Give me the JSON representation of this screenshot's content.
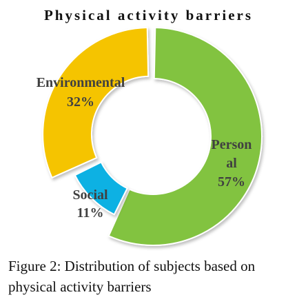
{
  "chart_data": {
    "type": "pie",
    "title": "Physical activity barriers",
    "categories": [
      "Personal",
      "Social",
      "Environmental"
    ],
    "values": [
      57,
      11,
      32
    ],
    "value_labels": [
      "57%",
      "11%",
      "32%"
    ],
    "label_lines": [
      [
        "Person",
        "al",
        "57%"
      ],
      [
        "Social",
        "11%"
      ],
      [
        "Environmental",
        "32%"
      ]
    ],
    "colors": [
      "#82C341",
      "#0BB1E3",
      "#F5C400"
    ],
    "donut": true,
    "legend": "none"
  },
  "caption": {
    "text": "Figure 2: Distribution of subjects based on physical activity barriers"
  }
}
